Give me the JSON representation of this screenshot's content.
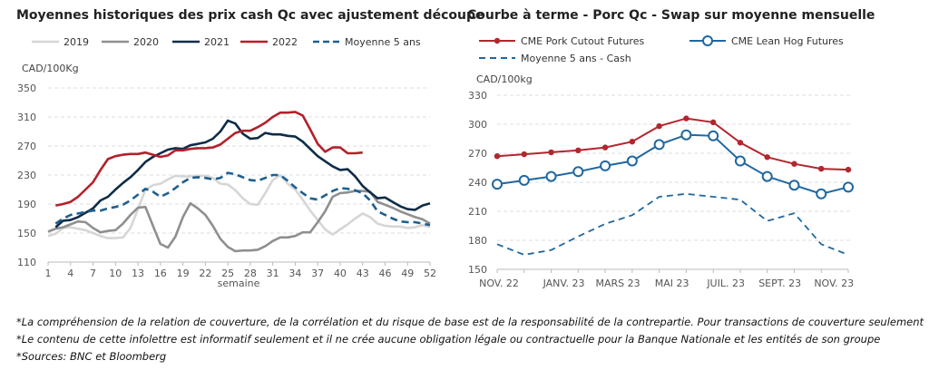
{
  "chart_data": [
    {
      "type": "line",
      "title": "Moyennes historiques des prix cash Qc avec ajustement découpe",
      "ylabel": "CAD/100Kg",
      "xlabel": "semaine",
      "ylim": [
        110,
        350
      ],
      "yticks": [
        110,
        150,
        190,
        230,
        270,
        310,
        350
      ],
      "xticks": [
        1,
        4,
        7,
        10,
        13,
        16,
        19,
        22,
        25,
        28,
        31,
        34,
        37,
        40,
        43,
        46,
        49,
        52
      ],
      "grid": "horizontal dashed",
      "legend": "top",
      "series": [
        {
          "name": "2019",
          "color": "#d6d6d6",
          "dash": false,
          "values": [
            146,
            149,
            157,
            158,
            156,
            154,
            150,
            146,
            143,
            143,
            144,
            157,
            183,
            210,
            216,
            218,
            224,
            229,
            228,
            228,
            229,
            229,
            226,
            218,
            217,
            209,
            198,
            190,
            189,
            205,
            223,
            230,
            218,
            210,
            196,
            181,
            168,
            155,
            148,
            155,
            162,
            170,
            177,
            172,
            163,
            160,
            159,
            159,
            157,
            158,
            161,
            158
          ]
        },
        {
          "name": "2020",
          "color": "#8f8f8f",
          "dash": false,
          "values": [
            152,
            156,
            158,
            162,
            166,
            165,
            157,
            151,
            153,
            154,
            163,
            175,
            185,
            186,
            160,
            135,
            130,
            145,
            172,
            191,
            184,
            175,
            160,
            142,
            131,
            125,
            126,
            126,
            127,
            132,
            139,
            144,
            144,
            146,
            151,
            151,
            165,
            180,
            200,
            205,
            206,
            208,
            208,
            207,
            193,
            189,
            185,
            180,
            176,
            172,
            169,
            163
          ]
        },
        {
          "name": "2021",
          "color": "#0e2c48",
          "dash": false,
          "values": [
            null,
            158,
            167,
            168,
            172,
            178,
            184,
            195,
            200,
            210,
            219,
            227,
            237,
            248,
            255,
            260,
            265,
            267,
            266,
            271,
            273,
            275,
            280,
            290,
            305,
            301,
            287,
            280,
            281,
            288,
            286,
            286,
            284,
            283,
            276,
            266,
            256,
            249,
            242,
            237,
            238,
            228,
            215,
            206,
            198,
            199,
            193,
            187,
            183,
            182,
            188,
            191
          ]
        },
        {
          "name": "2022",
          "color": "#b4202a",
          "dash": false,
          "values": [
            null,
            188,
            190,
            193,
            200,
            210,
            220,
            237,
            252,
            256,
            258,
            259,
            259,
            261,
            258,
            255,
            257,
            264,
            264,
            266,
            267,
            267,
            268,
            272,
            280,
            288,
            291,
            291,
            296,
            302,
            310,
            316,
            316,
            317,
            312,
            293,
            273,
            262,
            268,
            268,
            260,
            260,
            261
          ]
        },
        {
          "name": "Moyenne 5 ans",
          "color": "#1f5f8f",
          "dash": true,
          "values": [
            null,
            163,
            170,
            175,
            177,
            179,
            181,
            181,
            184,
            186,
            189,
            195,
            203,
            211,
            207,
            200,
            205,
            212,
            220,
            226,
            227,
            226,
            224,
            226,
            233,
            231,
            227,
            223,
            222,
            226,
            230,
            230,
            222,
            213,
            205,
            198,
            196,
            202,
            208,
            212,
            211,
            209,
            205,
            195,
            180,
            175,
            170,
            166,
            165,
            165,
            163,
            161
          ]
        }
      ]
    },
    {
      "type": "line",
      "title": "Courbe à terme - Porc Qc - Swap sur moyenne mensuelle",
      "ylabel": "CAD/100kg",
      "ylim": [
        150,
        330
      ],
      "yticks": [
        150,
        180,
        210,
        240,
        270,
        300,
        330
      ],
      "categories": [
        "NOV. 22",
        "DÉC. 22",
        "JANV. 23",
        "FÉVR. 23",
        "MARS 23",
        "AVR. 23",
        "MAI 23",
        "JUIN 23",
        "JUIL. 23",
        "AOÛT 23",
        "SEPT. 23",
        "OCT. 23",
        "NOV. 23",
        "DÉC. 23"
      ],
      "xtick_labels": [
        "NOV. 22",
        "JANV. 23",
        "MARS 23",
        "MAI 23",
        "JUIL. 23",
        "SEPT. 23",
        "NOV. 23"
      ],
      "grid": "horizontal dashed",
      "legend": "top",
      "series": [
        {
          "name": "CME Pork Cutout Futures",
          "color": "#b3262e",
          "marker": "filled-dot",
          "values": [
            267,
            269,
            271,
            273,
            276,
            282,
            298,
            306,
            302,
            281,
            266,
            259,
            254,
            253
          ]
        },
        {
          "name": "CME Lean Hog Futures",
          "color": "#1f67a0",
          "marker": "open-circle",
          "values": [
            238,
            242,
            246,
            251,
            257,
            262,
            279,
            289,
            288,
            262,
            246,
            237,
            228,
            235
          ]
        },
        {
          "name": "Moyenne 5 ans - Cash",
          "color": "#1f67a0",
          "dash": true,
          "values": [
            176,
            165,
            170,
            184,
            197,
            206,
            225,
            228,
            225,
            222,
            200,
            208,
            176,
            165
          ]
        }
      ]
    }
  ],
  "footer": [
    "*La compréhension de la relation de couverture, de la corrélation et du risque de base est de la responsabilité de la contrepartie. Pour transactions de couverture seulement",
    "*Le contenu de cette infolettre est informatif seulement et il ne crée aucune obligation légale ou contractuelle pour la Banque Nationale et les entités de son groupe",
    "*Sources: BNC et Bloomberg"
  ]
}
